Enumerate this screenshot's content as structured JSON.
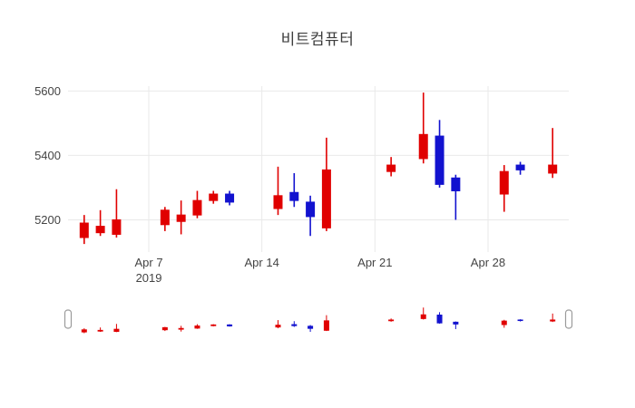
{
  "title": "비트컴퓨터",
  "chart_data": {
    "type": "candlestick",
    "title": "비트컴퓨터",
    "xlabel": "",
    "ylabel": "",
    "grid": true,
    "legend": false,
    "rangeslider": true,
    "y_ticks": [
      5200,
      5400,
      5600
    ],
    "y_range": [
      5100,
      5615
    ],
    "x_range": [
      "2019-04-02",
      "2019-05-03"
    ],
    "x_tick_labels": [
      {
        "date": "2019-04-07",
        "label": "Apr 7",
        "sub": "2019"
      },
      {
        "date": "2019-04-14",
        "label": "Apr 14",
        "sub": ""
      },
      {
        "date": "2019-04-21",
        "label": "Apr 21",
        "sub": ""
      },
      {
        "date": "2019-04-28",
        "label": "Apr 28",
        "sub": ""
      }
    ],
    "increasing_color": "#e00000",
    "decreasing_color": "#1212cf",
    "grid_color": "#e9e9e9",
    "axis_text_color": "#444444",
    "title_color": "#3d3d3d",
    "candles": [
      {
        "date": "2019-04-03",
        "open": 5145,
        "high": 5215,
        "low": 5125,
        "close": 5190
      },
      {
        "date": "2019-04-04",
        "open": 5160,
        "high": 5230,
        "low": 5150,
        "close": 5180
      },
      {
        "date": "2019-04-05",
        "open": 5155,
        "high": 5295,
        "low": 5145,
        "close": 5200
      },
      {
        "date": "2019-04-08",
        "open": 5185,
        "high": 5240,
        "low": 5165,
        "close": 5230
      },
      {
        "date": "2019-04-09",
        "open": 5195,
        "high": 5260,
        "low": 5155,
        "close": 5215
      },
      {
        "date": "2019-04-10",
        "open": 5215,
        "high": 5290,
        "low": 5205,
        "close": 5260
      },
      {
        "date": "2019-04-11",
        "open": 5260,
        "high": 5290,
        "low": 5250,
        "close": 5280
      },
      {
        "date": "2019-04-12",
        "open": 5280,
        "high": 5290,
        "low": 5245,
        "close": 5255
      },
      {
        "date": "2019-04-15",
        "open": 5235,
        "high": 5365,
        "low": 5215,
        "close": 5275
      },
      {
        "date": "2019-04-16",
        "open": 5285,
        "high": 5345,
        "low": 5240,
        "close": 5260
      },
      {
        "date": "2019-04-17",
        "open": 5255,
        "high": 5275,
        "low": 5150,
        "close": 5210
      },
      {
        "date": "2019-04-18",
        "open": 5175,
        "high": 5455,
        "low": 5165,
        "close": 5355
      },
      {
        "date": "2019-04-22",
        "open": 5350,
        "high": 5395,
        "low": 5335,
        "close": 5370
      },
      {
        "date": "2019-04-24",
        "open": 5390,
        "high": 5595,
        "low": 5375,
        "close": 5465
      },
      {
        "date": "2019-04-25",
        "open": 5460,
        "high": 5510,
        "low": 5300,
        "close": 5310
      },
      {
        "date": "2019-04-26",
        "open": 5330,
        "high": 5340,
        "low": 5200,
        "close": 5290
      },
      {
        "date": "2019-04-29",
        "open": 5280,
        "high": 5370,
        "low": 5225,
        "close": 5350
      },
      {
        "date": "2019-04-30",
        "open": 5370,
        "high": 5380,
        "low": 5340,
        "close": 5355
      },
      {
        "date": "2019-05-02",
        "open": 5345,
        "high": 5485,
        "low": 5330,
        "close": 5370
      }
    ]
  }
}
